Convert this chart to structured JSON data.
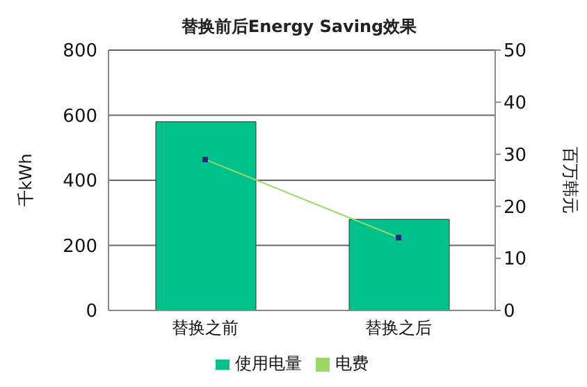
{
  "chart_data": {
    "type": "bar",
    "title": "替换前后Energy Saving效果",
    "categories": [
      "替换之前",
      "替换之后"
    ],
    "series": [
      {
        "name": "使用电量",
        "color": "#00c08b",
        "values": [
          580,
          280
        ]
      },
      {
        "name": "电费",
        "type": "line",
        "axis": "y2",
        "color": "#99d966",
        "colors": [
          "#1a2a80",
          "#1a2a80"
        ],
        "marker": "square",
        "values": [
          29,
          14
        ]
      }
    ],
    "ylabel": "千kWh",
    "y2label": "百万韩元",
    "ylim": [
      0,
      800
    ],
    "yticks": [
      0,
      200,
      400,
      600,
      800
    ],
    "y2lim": [
      0,
      50
    ],
    "y2ticks": [
      0,
      10,
      20,
      30,
      40,
      50
    ],
    "grid": "y",
    "legend": "bottom"
  }
}
